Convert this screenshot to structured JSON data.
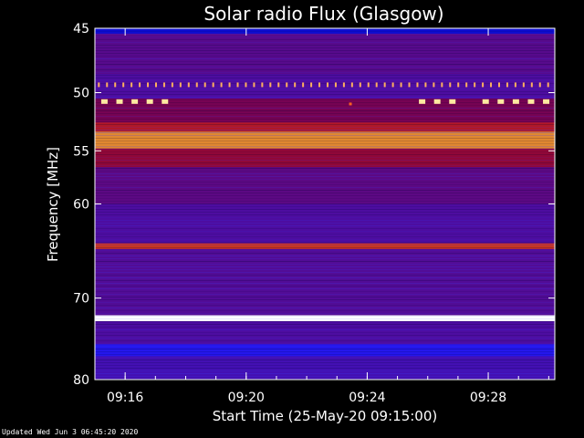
{
  "chart_data": {
    "type": "heatmap",
    "title": "Solar radio Flux (Glasgow)",
    "xlabel": "Start Time (25-May-20 09:15:00)",
    "ylabel": "Frequency [MHz]",
    "x_range_minutes": [
      0,
      15.2
    ],
    "y_range_mhz": [
      45,
      80
    ],
    "x_ticks": [
      {
        "minute": 1,
        "label": "09:16"
      },
      {
        "minute": 5,
        "label": "09:20"
      },
      {
        "minute": 9,
        "label": "09:24"
      },
      {
        "minute": 13,
        "label": "09:28"
      }
    ],
    "y_ticks": [
      45,
      50,
      55,
      60,
      70,
      80
    ],
    "colormap": [
      "#0000a0",
      "#1a1aff",
      "#800040",
      "#c02020",
      "#ffee40",
      "#ffffff"
    ],
    "bands_mhz": [
      {
        "from": 45.0,
        "to": 45.4,
        "level": 0.1
      },
      {
        "from": 45.4,
        "to": 48.5,
        "level": 0.32
      },
      {
        "from": 48.5,
        "to": 50.5,
        "level": 0.3
      },
      {
        "from": 50.5,
        "to": 52.5,
        "level": 0.38
      },
      {
        "from": 52.5,
        "to": 53.3,
        "level": 0.55
      },
      {
        "from": 53.3,
        "to": 54.8,
        "level": 0.7
      },
      {
        "from": 54.8,
        "to": 56.5,
        "level": 0.45
      },
      {
        "from": 56.5,
        "to": 60.0,
        "level": 0.33
      },
      {
        "from": 60.0,
        "to": 64.0,
        "level": 0.3
      },
      {
        "from": 64.0,
        "to": 64.6,
        "level": 0.62
      },
      {
        "from": 64.6,
        "to": 72.0,
        "level": 0.31
      },
      {
        "from": 72.0,
        "to": 72.7,
        "level": 1.0
      },
      {
        "from": 72.7,
        "to": 75.5,
        "level": 0.3
      },
      {
        "from": 75.5,
        "to": 77.0,
        "level": 0.22
      },
      {
        "from": 77.0,
        "to": 80.0,
        "level": 0.28
      }
    ],
    "interference_lines_mhz": [
      {
        "freq": 49.4,
        "kind": "dotted",
        "color": "#ffb060"
      },
      {
        "freq": 50.7,
        "kind": "bursts",
        "color": "#ffe8a0",
        "minutes": [
          0.3,
          0.8,
          1.3,
          1.8,
          2.3,
          10.8,
          11.3,
          11.8,
          12.9,
          13.4,
          13.9,
          14.4,
          14.9
        ]
      },
      {
        "freq": 50.9,
        "kind": "spot",
        "color": "#ff6020",
        "minutes": [
          8.4
        ]
      }
    ]
  },
  "footer_text": "Updated Wed Jun  3 06:45:20 2020"
}
